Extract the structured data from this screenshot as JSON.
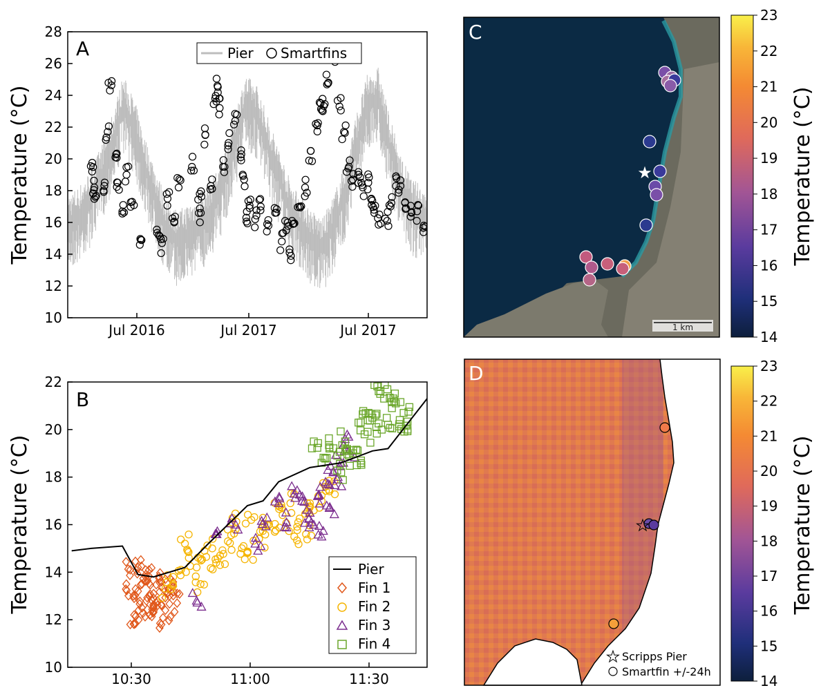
{
  "panels": {
    "A": {
      "letter": "A",
      "ylabel": "Temperature (°C)",
      "yticks": [
        10,
        12,
        14,
        16,
        18,
        20,
        22,
        24,
        26,
        28
      ],
      "xtick_labels": [
        "Jul 2016",
        "Jul 2017",
        "Jul 2017"
      ],
      "legend": {
        "line": "Pier",
        "marker": "Smartfins"
      },
      "colors": {
        "pier": "#bdbdbd",
        "marker": "#000000"
      }
    },
    "B": {
      "letter": "B",
      "ylabel": "Temperature (°C)",
      "yticks": [
        10,
        12,
        14,
        16,
        18,
        20,
        22
      ],
      "xtick_labels": [
        "10:30",
        "11:00",
        "11:30"
      ],
      "legend": [
        "Pier",
        "Fin 1",
        "Fin 2",
        "Fin 3",
        "Fin 4"
      ],
      "colors": {
        "pier": "#000000",
        "fin1": "#e0571a",
        "fin2": "#f5b400",
        "fin3": "#7b2d8e",
        "fin4": "#6aa62a"
      }
    },
    "C": {
      "letter": "C",
      "colorbar_label": "Temperature (°C)",
      "colorbar_ticks": [
        14,
        15,
        16,
        17,
        18,
        19,
        20,
        21,
        22,
        23
      ],
      "scale_bar": "1 km"
    },
    "D": {
      "letter": "D",
      "colorbar_label": "Temperature (°C)",
      "colorbar_ticks": [
        14,
        15,
        16,
        17,
        18,
        19,
        20,
        21,
        22,
        23
      ],
      "legend": [
        "Scripps Pier",
        "Smartfin +/-24h"
      ]
    }
  },
  "chart_data": [
    {
      "panel": "A",
      "type": "line",
      "title": "",
      "xlabel": "",
      "ylabel": "Temperature (°C)",
      "ylim": [
        10,
        28
      ],
      "series": [
        {
          "name": "Pier",
          "style": "line",
          "x_months": [
            0,
            1,
            2,
            3,
            4,
            5,
            6,
            7,
            8,
            9,
            10,
            11,
            12,
            13,
            14,
            15,
            16,
            17,
            18,
            19,
            20,
            21,
            22,
            23,
            24,
            25,
            26,
            27,
            28,
            29,
            30,
            31,
            32
          ],
          "values": [
            16,
            16.5,
            17.5,
            19,
            21,
            23.5,
            22,
            19.5,
            17.5,
            15.5,
            15,
            15.5,
            16,
            17,
            18.5,
            21,
            23.5,
            23,
            21,
            19,
            17,
            16,
            15,
            14.5,
            16,
            18,
            21,
            23.5,
            24,
            21,
            18.5,
            17,
            16.5
          ]
        },
        {
          "name": "Smartfins",
          "style": "scatter",
          "x_months": [
            2.2,
            2.4,
            2.5,
            3.3,
            3.6,
            3.8,
            4.3,
            4.5,
            5.0,
            5.3,
            5.8,
            6.6,
            8.2,
            8.5,
            9.0,
            9.6,
            10.0,
            11.2,
            11.9,
            12.0,
            12.4,
            12.9,
            13.3,
            13.5,
            13.7,
            14.0,
            14.5,
            15.1,
            15.6,
            15.9,
            16.1,
            16.4,
            16.9,
            17.4,
            18.1,
            18.7,
            19.3,
            19.7,
            20.0,
            20.3,
            20.9,
            21.4,
            21.9,
            22.5,
            22.8,
            23.0,
            23.5,
            24.1,
            24.5,
            24.9,
            25.3,
            25.7,
            26.2,
            26.6,
            27.1,
            27.4,
            27.6,
            28.1,
            28.8,
            29.1,
            29.6,
            30.0,
            30.5,
            31.0,
            31.5,
            32.1
          ],
          "values": [
            19.2,
            18.2,
            17.6,
            18.3,
            21.7,
            24.3,
            20.1,
            18.5,
            17.1,
            19.0,
            17.3,
            14.9,
            15.2,
            14.7,
            17.5,
            16.0,
            18.2,
            19.5,
            17.8,
            16.6,
            21.5,
            18.3,
            23.8,
            24.6,
            23.2,
            19.5,
            21.0,
            22.4,
            20.1,
            18.7,
            16.3,
            16.9,
            16.2,
            17.0,
            15.8,
            16.6,
            14.8,
            15.5,
            14.1,
            15.9,
            17.0,
            18.2,
            20.5,
            22.1,
            23.5,
            23.0,
            24.8,
            26.1,
            23.3,
            21.7,
            19.4,
            18.7,
            19.0,
            18.2,
            18.5,
            17.1,
            16.8,
            16.5,
            16.1,
            17.0,
            18.9,
            18.3,
            16.9,
            16.6,
            16.7,
            15.8
          ]
        }
      ]
    },
    {
      "panel": "B",
      "type": "scatter",
      "title": "",
      "xlabel": "",
      "ylabel": "Temperature (°C)",
      "ylim": [
        10,
        22
      ],
      "series": [
        {
          "name": "Pier",
          "style": "line",
          "x_min": [
            15,
            20,
            28,
            32,
            36,
            44,
            50,
            60,
            64,
            68,
            76,
            84,
            92,
            96,
            106
          ],
          "values": [
            14.9,
            15,
            15.1,
            13.9,
            13.8,
            14.2,
            15.2,
            16.8,
            17,
            17.8,
            18.4,
            18.6,
            19.1,
            19.2,
            21.3
          ]
        },
        {
          "name": "Fin 1",
          "style": "diamond",
          "x_min": [
            29,
            30,
            31,
            32,
            33,
            34,
            35,
            36,
            37,
            38,
            39,
            40,
            41,
            30,
            32,
            34,
            36,
            38,
            40,
            42,
            31,
            33,
            35,
            37,
            39
          ],
          "values": [
            13.5,
            11.8,
            12.9,
            13.2,
            12.5,
            13.8,
            12.2,
            13.1,
            12.8,
            13.6,
            12.4,
            13.0,
            13.4,
            14.1,
            14.2,
            13.9,
            12.9,
            11.8,
            13.3,
            12.7,
            12.2,
            13.5,
            13.0,
            12.6,
            13.7
          ]
        },
        {
          "name": "Fin 2",
          "style": "circle",
          "x_min": [
            39,
            41,
            43,
            45,
            47,
            49,
            51,
            53,
            55,
            57,
            59,
            61,
            63,
            65,
            67,
            69,
            71,
            73,
            75,
            77,
            79,
            81,
            44,
            48,
            52,
            56,
            60,
            64,
            68,
            72,
            76,
            80
          ],
          "values": [
            13.3,
            13.8,
            14.1,
            14.6,
            14.2,
            14.9,
            15.0,
            14.7,
            15.3,
            15.8,
            15.1,
            16.2,
            15.4,
            16.0,
            15.7,
            16.4,
            16.9,
            16.1,
            15.6,
            16.6,
            17.0,
            17.4,
            15.2,
            13.5,
            14.4,
            16.1,
            14.8,
            15.9,
            16.8,
            15.5,
            16.9,
            17.6
          ]
        },
        {
          "name": "Fin 3",
          "style": "triangle",
          "x_min": [
            47,
            52,
            57,
            62,
            65,
            68,
            70,
            72,
            74,
            76,
            78,
            80,
            82,
            84,
            86,
            77,
            79,
            81,
            83,
            85
          ],
          "values": [
            12.8,
            15.6,
            16.0,
            15.2,
            16.3,
            16.9,
            16.1,
            17.3,
            17.0,
            16.5,
            17.2,
            17.8,
            18.2,
            18.6,
            19.1,
            16.0,
            15.5,
            16.7,
            17.9,
            19.6
          ]
        },
        {
          "name": "Fin 4",
          "style": "square",
          "x_min": [
            77,
            79,
            81,
            83,
            85,
            87,
            89,
            91,
            93,
            95,
            97,
            99,
            101,
            88,
            90,
            92,
            94,
            96,
            98,
            100,
            86,
            84
          ],
          "values": [
            19.5,
            18.6,
            19.2,
            18.9,
            19.5,
            19.0,
            20.3,
            20.7,
            20.1,
            21.3,
            20.9,
            20.4,
            20.0,
            18.5,
            19.8,
            20.5,
            21.5,
            20.2,
            21.1,
            20.7,
            18.9,
            18.2
          ]
        }
      ]
    },
    {
      "panel": "C",
      "type": "scatter",
      "title": "",
      "xlabel": "",
      "ylabel": "",
      "colorbar_range": [
        14,
        23
      ],
      "points_temperature": [
        16.2,
        16.8,
        17.3,
        15.4,
        16.5,
        16.0,
        15.3,
        18.0,
        16.7,
        17.6,
        15.5,
        16.9,
        17.1,
        15.8,
        18.3,
        18.0,
        18.6,
        18.2,
        18.5,
        20.5,
        18.4
      ]
    },
    {
      "panel": "D",
      "type": "heatmap",
      "title": "",
      "xlabel": "",
      "ylabel": "",
      "colorbar_range": [
        14,
        23
      ],
      "field_mean_temperature": 19.8,
      "nearshore_temperature": 18.2,
      "smartfin_temperatures": [
        19.0,
        16.8,
        16.5,
        20.2
      ]
    }
  ]
}
